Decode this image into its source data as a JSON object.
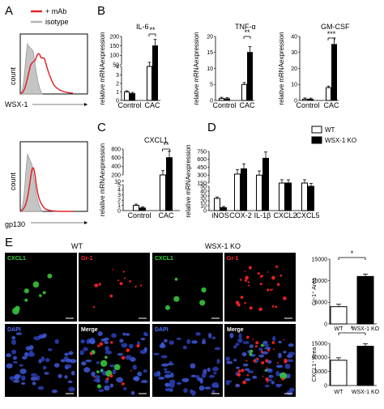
{
  "panel_letters": [
    "A",
    "B",
    "C",
    "D",
    "E"
  ],
  "panel_a": {
    "legend": [
      "+ mAb",
      "isotype"
    ],
    "legend_colors": [
      "#e0242a",
      "#b5b5b5"
    ],
    "top": {
      "ylabel": "count",
      "xlabel": "WSX-1"
    },
    "bottom": {
      "ylabel": "count",
      "xlabel": "gp130"
    }
  },
  "ylabel_mrna": "relative mRNAexpression",
  "legend_d": {
    "wt": "WT",
    "ko": "WSX-1 KO"
  },
  "chart_data": [
    {
      "type": "bar",
      "title": "IL-6",
      "categories": [
        "Control",
        "CAC"
      ],
      "series": [
        {
          "name": "WT",
          "values": [
            1.0,
            30
          ]
        },
        {
          "name": "WSX-1 KO",
          "values": [
            0.8,
            150
          ]
        }
      ],
      "yticks": [
        "0",
        "1",
        "2",
        "3",
        "4",
        "50",
        "100",
        "150",
        "200"
      ],
      "significance": [
        "**"
      ]
    },
    {
      "type": "bar",
      "title": "TNF-α",
      "categories": [
        "Control",
        "CAC"
      ],
      "series": [
        {
          "name": "WT",
          "values": [
            0.6,
            5
          ]
        },
        {
          "name": "WSX-1 KO",
          "values": [
            0.5,
            15
          ]
        }
      ],
      "yticks": [
        "0",
        "5",
        "10",
        "15",
        "20"
      ],
      "significance": [
        "**"
      ]
    },
    {
      "type": "bar",
      "title": "GM-CSF",
      "categories": [
        "Control",
        "CAC"
      ],
      "series": [
        {
          "name": "WT",
          "values": [
            0.8,
            8
          ]
        },
        {
          "name": "WSX-1 KO",
          "values": [
            0.7,
            35
          ]
        }
      ],
      "yticks": [
        "0",
        "10",
        "20",
        "30",
        "40"
      ],
      "significance": [
        "***"
      ]
    },
    {
      "type": "bar",
      "title": "CXCL1",
      "categories": [
        "Control",
        "CAC"
      ],
      "series": [
        {
          "name": "WT",
          "values": [
            1.0,
            200
          ]
        },
        {
          "name": "WSX-1 KO",
          "values": [
            0.5,
            600
          ]
        }
      ],
      "yticks": [
        "0",
        "1",
        "2",
        "3",
        "4",
        "5",
        "10",
        "200",
        "400",
        "600",
        "800"
      ],
      "significance": [
        "**"
      ]
    },
    {
      "type": "bar",
      "categories": [
        "iNOS",
        "COX-2",
        "IL-1β",
        "CXCL2",
        "CXCL5"
      ],
      "series": [
        {
          "name": "WT",
          "values": [
            25,
            320,
            300,
            150,
            150
          ]
        },
        {
          "name": "WSX-1 KO",
          "values": [
            6,
            420,
            620,
            150,
            140
          ]
        }
      ],
      "yticks": [
        "0",
        "10",
        "20",
        "30",
        "40",
        "50",
        "150",
        "300",
        "450",
        "600",
        "750"
      ]
    },
    {
      "type": "bar",
      "categories": [
        "WT",
        "WSX-1 KO"
      ],
      "series": [
        {
          "values": [
            4000,
            11000
          ]
        }
      ],
      "ylabel": "Gr-1⁺ Area",
      "yticks": [
        "0",
        "5000",
        "10000",
        "15000"
      ],
      "significance": [
        "*"
      ]
    },
    {
      "type": "bar",
      "categories": [
        "WT",
        "WSX-1 KO"
      ],
      "series": [
        {
          "values": [
            9000,
            14000
          ]
        }
      ],
      "ylabel": "CXCL1⁺ Area",
      "yticks": [
        "0",
        "5000",
        "10000",
        "15000"
      ],
      "significance": [
        "*"
      ]
    }
  ],
  "micrograph": {
    "group_wt": "WT",
    "group_ko": "WSX-1 KO",
    "labels": [
      "CXCL1",
      "Gr-1",
      "DAPI",
      "Merge",
      "CXCL1",
      "Gr-1",
      "DAPI",
      "Merge"
    ]
  }
}
